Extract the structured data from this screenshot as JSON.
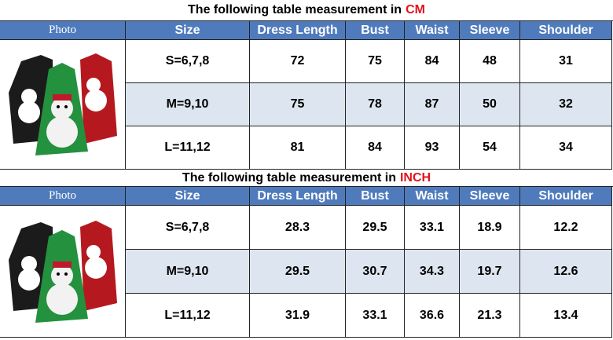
{
  "tables": [
    {
      "title_prefix": "The following table measurement in",
      "title_unit": "CM",
      "header": [
        "Photo",
        "Size",
        "Dress Length",
        "Bust",
        "Waist",
        "Sleeve",
        "Shoulder"
      ],
      "rows": [
        [
          "S=6,7,8",
          "72",
          "75",
          "84",
          "48",
          "31"
        ],
        [
          "M=9,10",
          "75",
          "78",
          "87",
          "50",
          "32"
        ],
        [
          "L=11,12",
          "81",
          "84",
          "93",
          "54",
          "34"
        ]
      ]
    },
    {
      "title_prefix": "The following table measurement in",
      "title_unit": "INCH",
      "header": [
        "Photo",
        "Size",
        "Dress Length",
        "Bust",
        "Waist",
        "Sleeve",
        "Shoulder"
      ],
      "rows": [
        [
          "S=6,7,8",
          "28.3",
          "29.5",
          "33.1",
          "18.9",
          "12.2"
        ],
        [
          "M=9,10",
          "29.5",
          "30.7",
          "34.3",
          "19.7",
          "12.6"
        ],
        [
          "L=11,12",
          "31.9",
          "33.1",
          "36.6",
          "21.3",
          "13.4"
        ]
      ]
    }
  ]
}
